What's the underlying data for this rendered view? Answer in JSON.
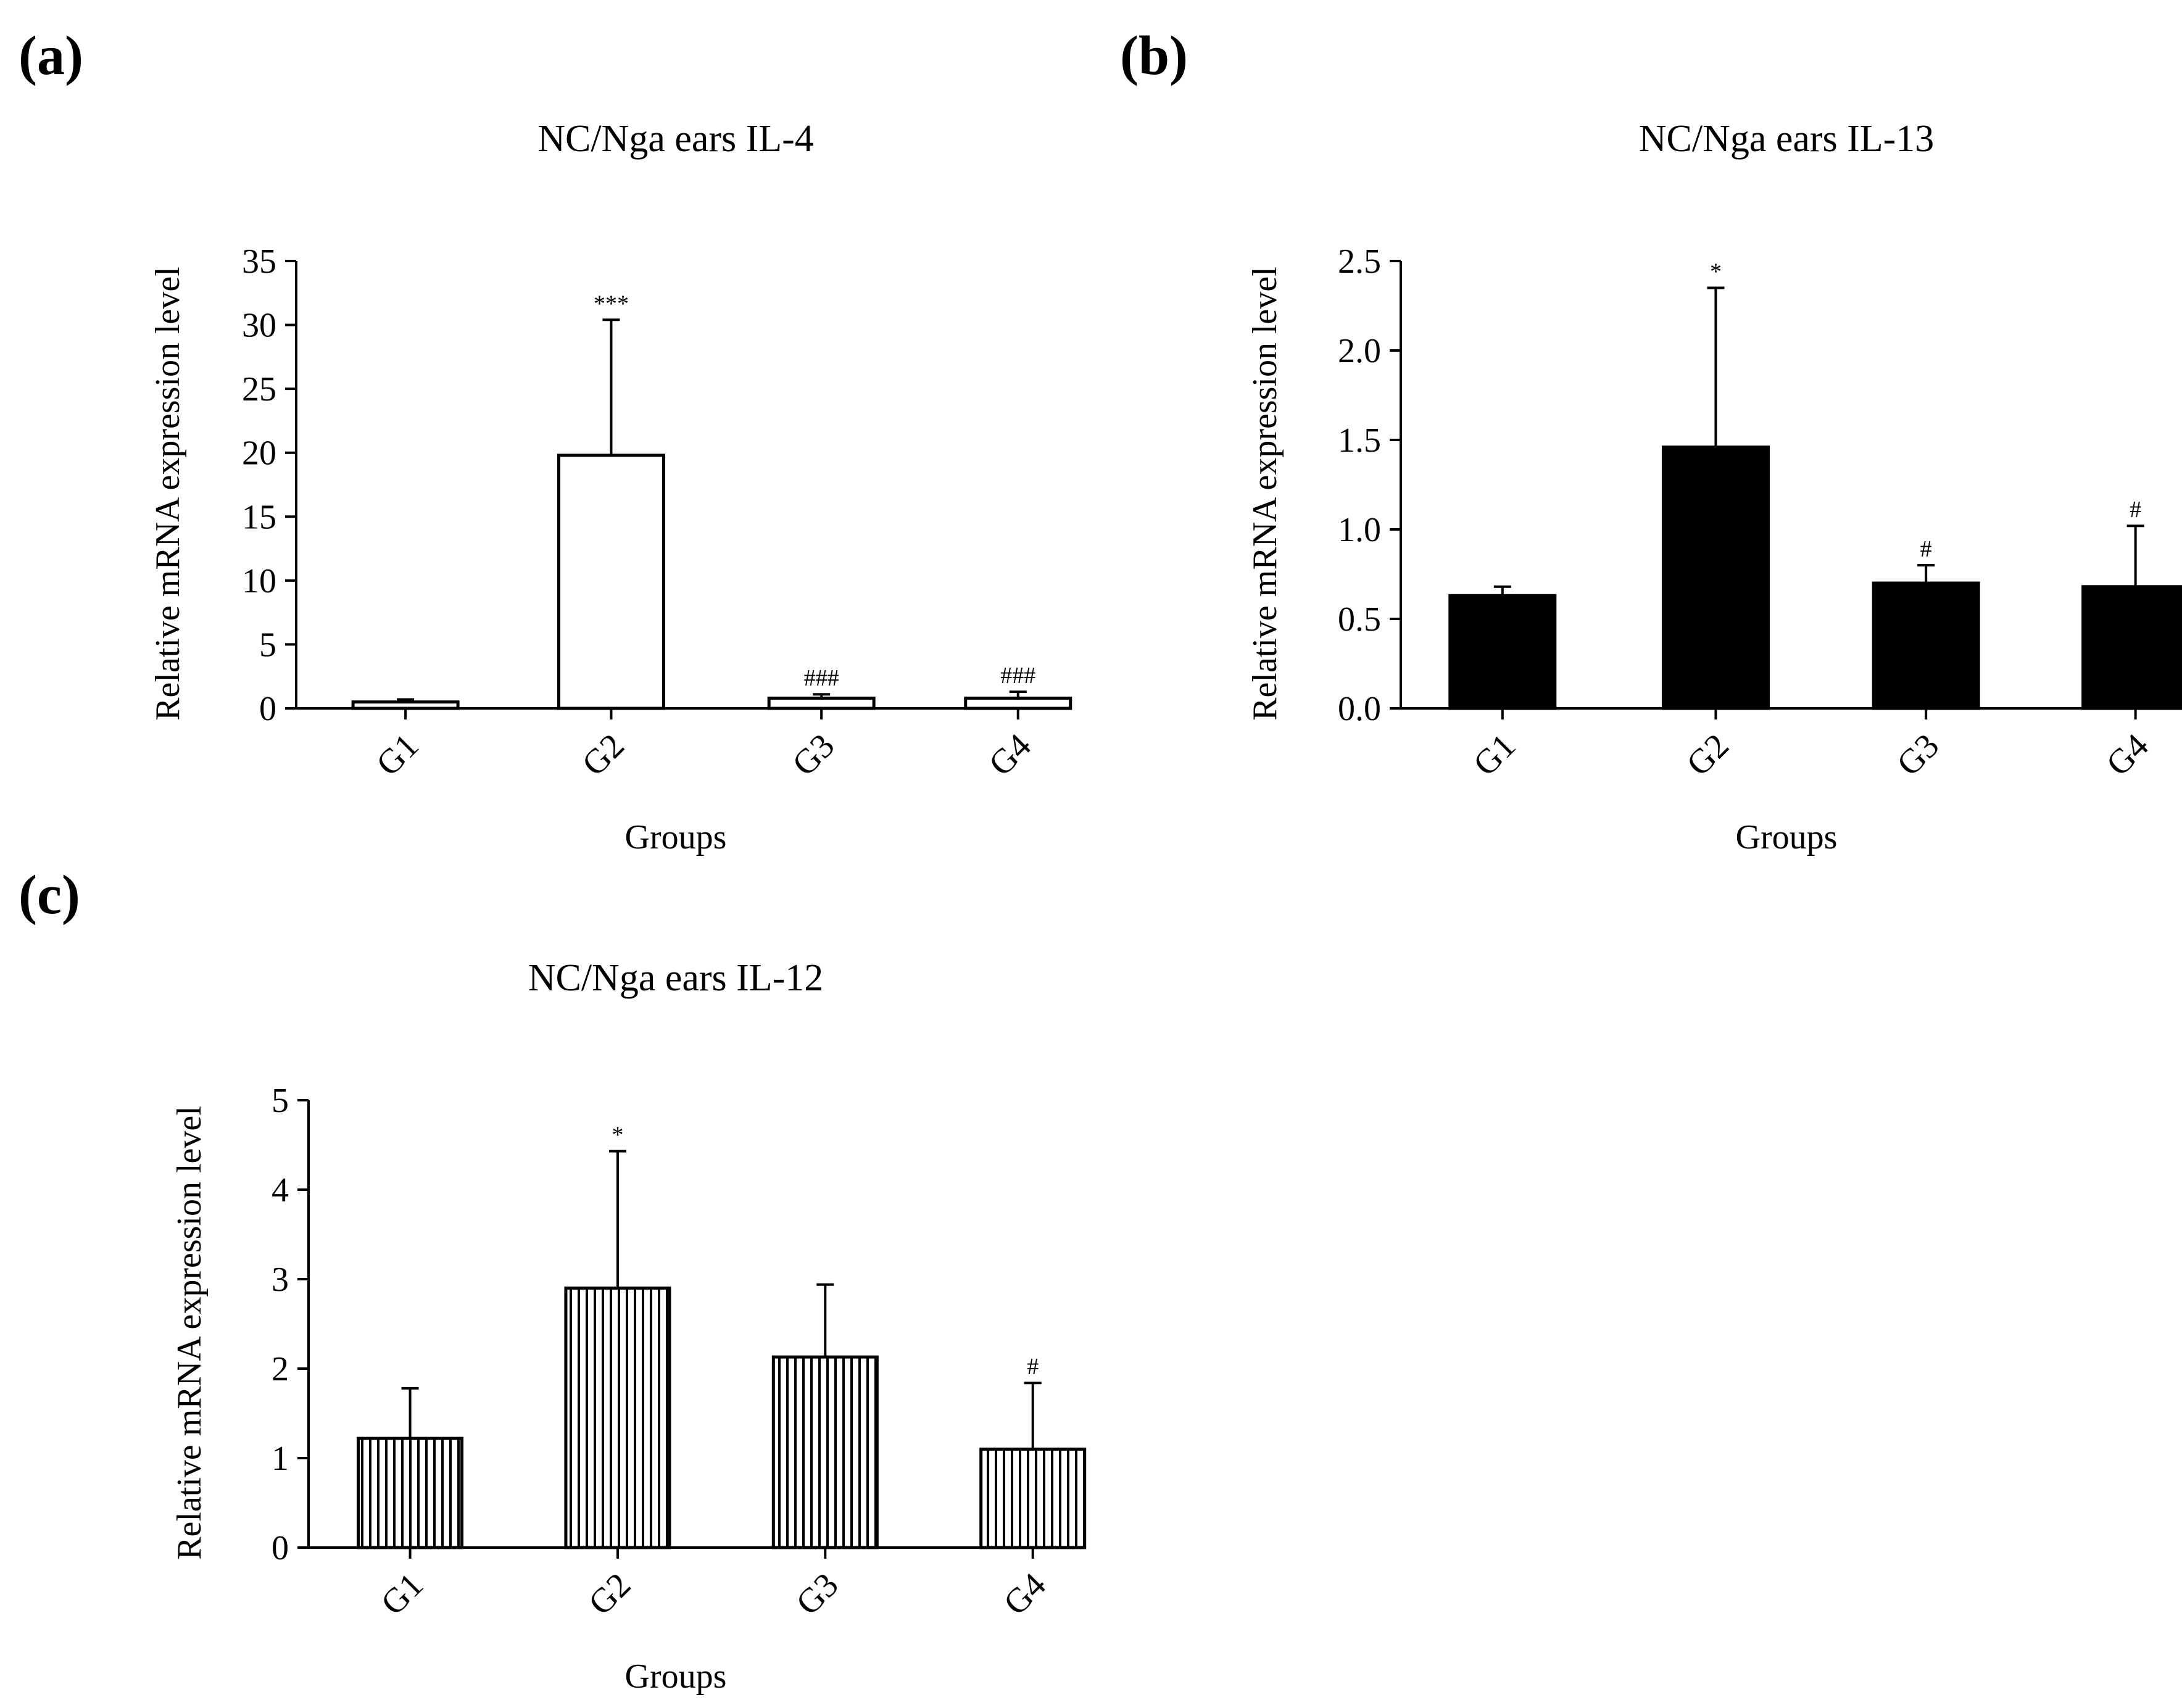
{
  "figure": {
    "panels": [
      "(a)",
      "(b)",
      "(c)"
    ]
  },
  "chart_data": [
    {
      "id": "a",
      "type": "bar",
      "panel_label": "(a)",
      "title": "NC/Nga ears IL-4",
      "xlabel": "Groups",
      "ylabel": "Relative mRNA expression level",
      "categories": [
        "G1",
        "G2",
        "G3",
        "G4"
      ],
      "values": [
        0.5,
        19.8,
        0.8,
        0.8
      ],
      "errors": [
        0.2,
        10.6,
        0.3,
        0.5
      ],
      "annotations": [
        "",
        "***",
        "###",
        "###"
      ],
      "ylim": [
        0,
        35
      ],
      "yticks": [
        0,
        5,
        10,
        15,
        20,
        25,
        30,
        35
      ],
      "ytick_labels": [
        "0",
        "5",
        "10",
        "15",
        "20",
        "25",
        "30",
        "35"
      ],
      "fill": "white",
      "color": "#000000"
    },
    {
      "id": "b",
      "type": "bar",
      "panel_label": "(b)",
      "title": "NC/Nga ears IL-13",
      "xlabel": "Groups",
      "ylabel": "Relative mRNA expression level",
      "categories": [
        "G1",
        "G2",
        "G3",
        "G4"
      ],
      "values": [
        0.63,
        1.46,
        0.7,
        0.68
      ],
      "errors": [
        0.05,
        0.89,
        0.1,
        0.34
      ],
      "annotations": [
        "",
        "*",
        "#",
        "#"
      ],
      "ylim": [
        0,
        2.5
      ],
      "yticks": [
        0,
        0.5,
        1.0,
        1.5,
        2.0,
        2.5
      ],
      "ytick_labels": [
        "0.0",
        "0.5",
        "1.0",
        "1.5",
        "2.0",
        "2.5"
      ],
      "fill": "solid",
      "color": "#000000"
    },
    {
      "id": "c",
      "type": "bar",
      "panel_label": "(c)",
      "title": "NC/Nga ears IL-12",
      "xlabel": "Groups",
      "ylabel": "Relative mRNA expression level",
      "categories": [
        "G1",
        "G2",
        "G3",
        "G4"
      ],
      "values": [
        1.22,
        2.9,
        2.13,
        1.1
      ],
      "errors": [
        0.56,
        1.53,
        0.81,
        0.74
      ],
      "annotations": [
        "",
        "*",
        "",
        "#"
      ],
      "ylim": [
        0,
        5
      ],
      "yticks": [
        0,
        1,
        2,
        3,
        4,
        5
      ],
      "ytick_labels": [
        "0",
        "1",
        "2",
        "3",
        "4",
        "5"
      ],
      "fill": "vertical-stripes",
      "color": "#000000"
    }
  ]
}
